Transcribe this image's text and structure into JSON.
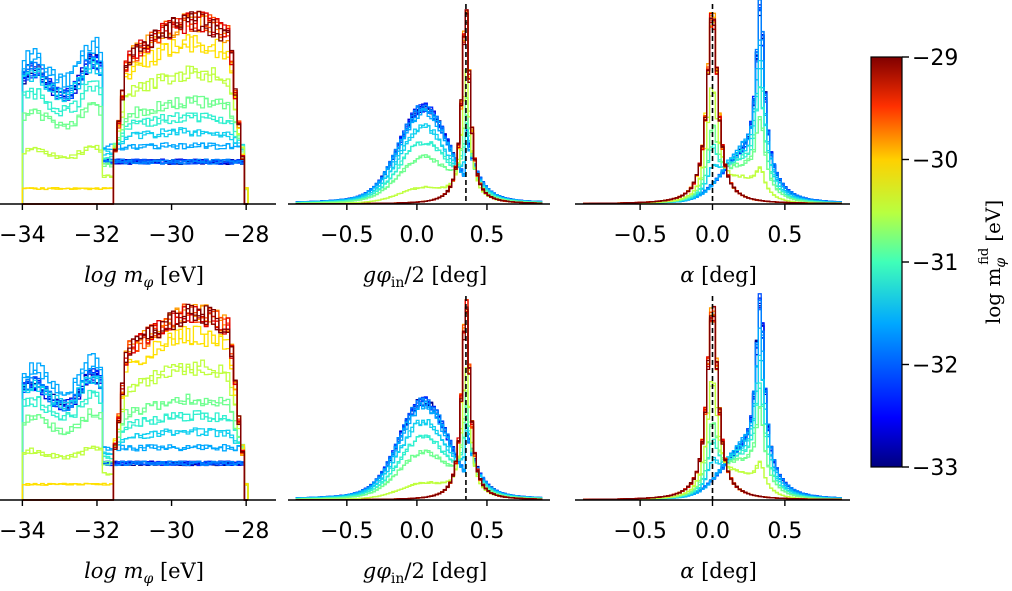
{
  "chart_data": {
    "type": "step-histogram-grid",
    "colormap": "jet",
    "colorbar": {
      "label": "log m_φ^fid [eV]",
      "label_main": "log m",
      "label_sub": "φ",
      "label_sup": "fid",
      "label_unit": "[eV]",
      "ticks": [
        "−29",
        "−30",
        "−31",
        "−32",
        "−33"
      ],
      "range": [
        -33,
        -29
      ]
    },
    "panels": [
      {
        "row": 0,
        "col": 0,
        "xlabel_main": "log m",
        "xlabel_sub": "φ",
        "xlabel_unit": "[eV]",
        "xrange": [
          -34.6,
          -27.2
        ],
        "ticks": [
          -34,
          -32,
          -30,
          -28
        ],
        "tick_labels": [
          "−34",
          "−32",
          "−30",
          "−28"
        ],
        "reference_line": null
      },
      {
        "row": 0,
        "col": 1,
        "xlabel_main": "gφ",
        "xlabel_sub": "in",
        "xlabel_unit": "/2 [deg]",
        "xrange": [
          -0.92,
          0.95
        ],
        "ticks": [
          -0.5,
          0.0,
          0.5
        ],
        "tick_labels": [
          "−0.5",
          "0.0",
          "0.5"
        ],
        "reference_line": 0.35
      },
      {
        "row": 0,
        "col": 2,
        "xlabel_main": "α",
        "xlabel_sub": "",
        "xlabel_unit": "[deg]",
        "xrange": [
          -0.95,
          0.95
        ],
        "ticks": [
          -0.5,
          0.0,
          0.5
        ],
        "tick_labels": [
          "−0.5",
          "0.0",
          "0.5"
        ],
        "reference_line": 0.0
      },
      {
        "row": 1,
        "col": 0,
        "xlabel_main": "log m",
        "xlabel_sub": "φ",
        "xlabel_unit": "[eV]",
        "xrange": [
          -34.6,
          -27.2
        ],
        "ticks": [
          -34,
          -32,
          -30,
          -28
        ],
        "tick_labels": [
          "−34",
          "−32",
          "−30",
          "−28"
        ],
        "reference_line": null
      },
      {
        "row": 1,
        "col": 1,
        "xlabel_main": "gφ",
        "xlabel_sub": "in",
        "xlabel_unit": "/2 [deg]",
        "xrange": [
          -0.92,
          0.95
        ],
        "ticks": [
          -0.5,
          0.0,
          0.5
        ],
        "tick_labels": [
          "−0.5",
          "0.0",
          "0.5"
        ],
        "reference_line": 0.35
      },
      {
        "row": 1,
        "col": 2,
        "xlabel_main": "α",
        "xlabel_sub": "",
        "xlabel_unit": "[deg]",
        "xrange": [
          -0.95,
          0.95
        ],
        "ticks": [
          -0.5,
          0.0,
          0.5
        ],
        "tick_labels": [
          "−0.5",
          "0.0",
          "0.5"
        ],
        "reference_line": 0.0
      }
    ],
    "series": [
      {
        "fid_log_mass": -33.0,
        "color": "#00008f"
      },
      {
        "fid_log_mass": -32.8,
        "color": "#0000d6"
      },
      {
        "fid_log_mass": -32.6,
        "color": "#0020ff"
      },
      {
        "fid_log_mass": -32.4,
        "color": "#0050ff"
      },
      {
        "fid_log_mass": -32.2,
        "color": "#0080ff"
      },
      {
        "fid_log_mass": -32.0,
        "color": "#00a8ff"
      },
      {
        "fid_log_mass": -31.8,
        "color": "#10d0f0"
      },
      {
        "fid_log_mass": -31.6,
        "color": "#30f0d0"
      },
      {
        "fid_log_mass": -31.4,
        "color": "#70ff90"
      },
      {
        "fid_log_mass": -31.0,
        "color": "#c0ff40"
      },
      {
        "fid_log_mass": -30.6,
        "color": "#ffe000"
      },
      {
        "fid_log_mass": -30.2,
        "color": "#ff9a00"
      },
      {
        "fid_log_mass": -29.8,
        "color": "#ff4a00"
      },
      {
        "fid_log_mass": -29.4,
        "color": "#e00000"
      },
      {
        "fid_log_mass": -29.0,
        "color": "#800000"
      }
    ]
  }
}
